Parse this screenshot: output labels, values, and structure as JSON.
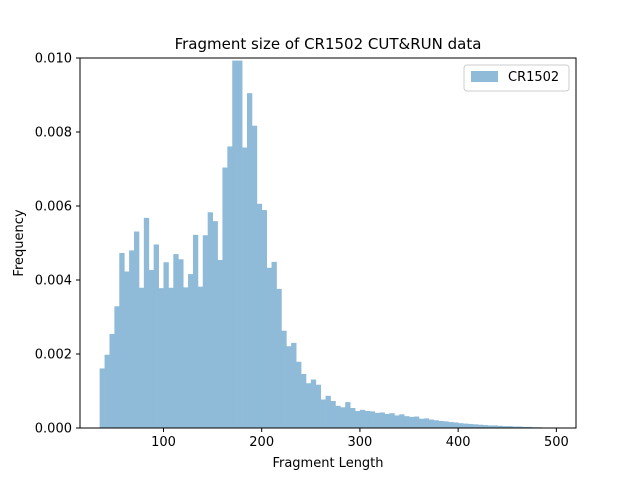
{
  "chart_data": {
    "type": "bar",
    "title": "Fragment size of CR1502 CUT&RUN data",
    "xlabel": "Fragment Length",
    "ylabel": "Frequency",
    "xlim": [
      15,
      520
    ],
    "ylim": [
      0,
      0.01
    ],
    "xticks": [
      100,
      200,
      300,
      400,
      500
    ],
    "xtick_labels": [
      "100",
      "200",
      "300",
      "400",
      "500"
    ],
    "yticks": [
      0.0,
      0.002,
      0.004,
      0.006,
      0.008,
      0.01
    ],
    "ytick_labels": [
      "0.000",
      "0.002",
      "0.004",
      "0.006",
      "0.008",
      "0.010"
    ],
    "legend_position": "top-right",
    "grid": false,
    "bin_start": 35,
    "bin_width": 5,
    "series": [
      {
        "name": "CR1502",
        "color": "#8fbbd9",
        "values": [
          0.00161,
          0.00198,
          0.00254,
          0.00329,
          0.00473,
          0.00423,
          0.0048,
          0.00531,
          0.00379,
          0.00568,
          0.00427,
          0.00496,
          0.00378,
          0.00448,
          0.00379,
          0.0047,
          0.00456,
          0.0038,
          0.00416,
          0.00522,
          0.00382,
          0.00521,
          0.00583,
          0.00559,
          0.00454,
          0.00704,
          0.00761,
          0.00993,
          0.00993,
          0.00758,
          0.00905,
          0.00817,
          0.00606,
          0.00589,
          0.00433,
          0.00449,
          0.00376,
          0.00263,
          0.00221,
          0.0023,
          0.00179,
          0.00146,
          0.00121,
          0.00131,
          0.00117,
          0.00077,
          0.00087,
          0.00073,
          0.0006,
          0.00056,
          0.0007,
          0.00054,
          0.00046,
          0.00049,
          0.00046,
          0.00045,
          0.00041,
          0.00042,
          0.00038,
          0.0004,
          0.00034,
          0.00037,
          0.00032,
          0.0003,
          0.00031,
          0.00025,
          0.00026,
          0.00023,
          0.00021,
          0.00019,
          0.00018,
          0.00016,
          0.00015,
          0.00013,
          0.00012,
          0.00011,
          0.0001,
          9e-05,
          8e-05,
          7e-05,
          7e-05,
          6e-05,
          5e-05,
          5e-05,
          4e-05,
          4e-05,
          3e-05,
          3e-05,
          2e-05,
          2e-05
        ]
      }
    ]
  }
}
